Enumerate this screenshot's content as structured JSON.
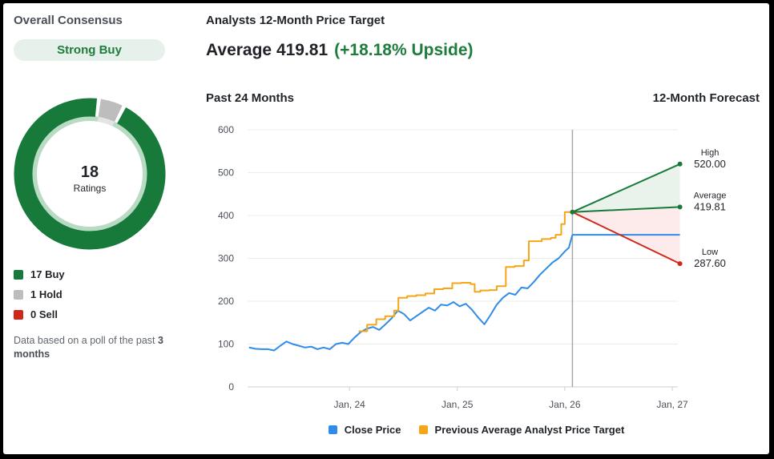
{
  "consensus": {
    "title": "Overall Consensus",
    "rating": "Strong Buy",
    "total": "18",
    "total_label": "Ratings",
    "breakdown": [
      {
        "label": "17 Buy",
        "count": 17,
        "color": "#177a3a"
      },
      {
        "label": "1 Hold",
        "count": 1,
        "color": "#bdbdbd"
      },
      {
        "label": "0 Sell",
        "count": 0,
        "color": "#d0271b"
      }
    ],
    "note_prefix": "Data based on a poll of the past ",
    "note_bold": "3 months"
  },
  "price_target": {
    "title": "Analysts 12-Month Price Target",
    "average_label": "Average 419.81",
    "upside_label": "(+18.18% Upside)",
    "past_label": "Past 24 Months",
    "forecast_label": "12-Month Forecast"
  },
  "chart_data": {
    "type": "line",
    "ylim": [
      0,
      600
    ],
    "yticks": [
      "0",
      "100",
      "200",
      "300",
      "400",
      "500",
      "600"
    ],
    "xlim": [
      "2023-01-20",
      "2027-01-20"
    ],
    "xticks": [
      {
        "label": "Jan, 24",
        "date": "2024-01-01"
      },
      {
        "label": "Jan, 25",
        "date": "2025-01-01"
      },
      {
        "label": "Jan, 26",
        "date": "2026-01-01"
      },
      {
        "label": "Jan, 27",
        "date": "2027-01-01"
      }
    ],
    "today": "2026-01-27",
    "forecast_end": "2027-01-27",
    "colors": {
      "close": "#2f8ce8",
      "target": "#f5a518",
      "high": "#177a3a",
      "average": "#177a3a",
      "low": "#d0271b",
      "current": "#2f8ce8"
    },
    "series": [
      {
        "name": "Close Price",
        "points": [
          [
            "2023-01-25",
            92
          ],
          [
            "2023-02-15",
            89
          ],
          [
            "2023-03-08",
            88
          ],
          [
            "2023-03-30",
            88
          ],
          [
            "2023-04-20",
            85
          ],
          [
            "2023-05-11",
            96
          ],
          [
            "2023-06-01",
            106
          ],
          [
            "2023-06-22",
            100
          ],
          [
            "2023-07-13",
            96
          ],
          [
            "2023-08-03",
            92
          ],
          [
            "2023-08-24",
            94
          ],
          [
            "2023-09-14",
            88
          ],
          [
            "2023-10-05",
            92
          ],
          [
            "2023-10-26",
            88
          ],
          [
            "2023-11-16",
            100
          ],
          [
            "2023-12-07",
            103
          ],
          [
            "2023-12-28",
            100
          ],
          [
            "2024-01-18",
            115
          ],
          [
            "2024-02-08",
            128
          ],
          [
            "2024-02-29",
            136
          ],
          [
            "2024-03-21",
            140
          ],
          [
            "2024-04-11",
            133
          ],
          [
            "2024-05-02",
            146
          ],
          [
            "2024-05-23",
            160
          ],
          [
            "2024-06-13",
            178
          ],
          [
            "2024-07-04",
            170
          ],
          [
            "2024-07-25",
            155
          ],
          [
            "2024-08-15",
            165
          ],
          [
            "2024-09-05",
            175
          ],
          [
            "2024-09-26",
            185
          ],
          [
            "2024-10-17",
            178
          ],
          [
            "2024-11-07",
            192
          ],
          [
            "2024-11-28",
            190
          ],
          [
            "2024-12-19",
            198
          ],
          [
            "2025-01-09",
            188
          ],
          [
            "2025-01-30",
            194
          ],
          [
            "2025-02-20",
            180
          ],
          [
            "2025-03-13",
            162
          ],
          [
            "2025-04-03",
            146
          ],
          [
            "2025-04-24",
            168
          ],
          [
            "2025-05-15",
            192
          ],
          [
            "2025-06-05",
            208
          ],
          [
            "2025-06-26",
            219
          ],
          [
            "2025-07-17",
            215
          ],
          [
            "2025-08-07",
            232
          ],
          [
            "2025-08-28",
            230
          ],
          [
            "2025-09-18",
            245
          ],
          [
            "2025-10-09",
            262
          ],
          [
            "2025-10-30",
            276
          ],
          [
            "2025-11-20",
            290
          ],
          [
            "2025-12-11",
            300
          ],
          [
            "2026-01-01",
            316
          ],
          [
            "2026-01-15",
            325
          ],
          [
            "2026-01-27",
            355
          ]
        ]
      },
      {
        "name": "Previous Average Analyst Price Target",
        "points": [
          [
            "2024-02-01",
            130
          ],
          [
            "2024-03-01",
            145
          ],
          [
            "2024-04-01",
            158
          ],
          [
            "2024-05-01",
            165
          ],
          [
            "2024-06-01",
            178
          ],
          [
            "2024-06-15",
            208
          ],
          [
            "2024-07-15",
            212
          ],
          [
            "2024-08-15",
            214
          ],
          [
            "2024-09-15",
            218
          ],
          [
            "2024-10-15",
            228
          ],
          [
            "2024-11-15",
            230
          ],
          [
            "2024-12-15",
            242
          ],
          [
            "2025-01-15",
            243
          ],
          [
            "2025-02-15",
            240
          ],
          [
            "2025-03-01",
            222
          ],
          [
            "2025-03-20",
            225
          ],
          [
            "2025-04-20",
            226
          ],
          [
            "2025-05-15",
            235
          ],
          [
            "2025-06-15",
            280
          ],
          [
            "2025-07-15",
            282
          ],
          [
            "2025-08-15",
            295
          ],
          [
            "2025-09-01",
            340
          ],
          [
            "2025-10-15",
            345
          ],
          [
            "2025-11-15",
            348
          ],
          [
            "2025-12-01",
            355
          ],
          [
            "2025-12-20",
            380
          ],
          [
            "2026-01-01",
            408
          ],
          [
            "2026-01-27",
            408
          ]
        ]
      }
    ],
    "forecast": {
      "start_value": 408,
      "current_price": 355,
      "high": {
        "label": "High",
        "value": 520.0,
        "text": "520.00"
      },
      "average": {
        "label": "Average",
        "value": 419.81,
        "text": "419.81"
      },
      "low": {
        "label": "Low",
        "value": 287.6,
        "text": "287.60"
      }
    }
  },
  "legend": [
    {
      "label": "Close Price",
      "color": "#2f8ce8"
    },
    {
      "label": "Previous Average Analyst Price Target",
      "color": "#f5a518"
    }
  ]
}
